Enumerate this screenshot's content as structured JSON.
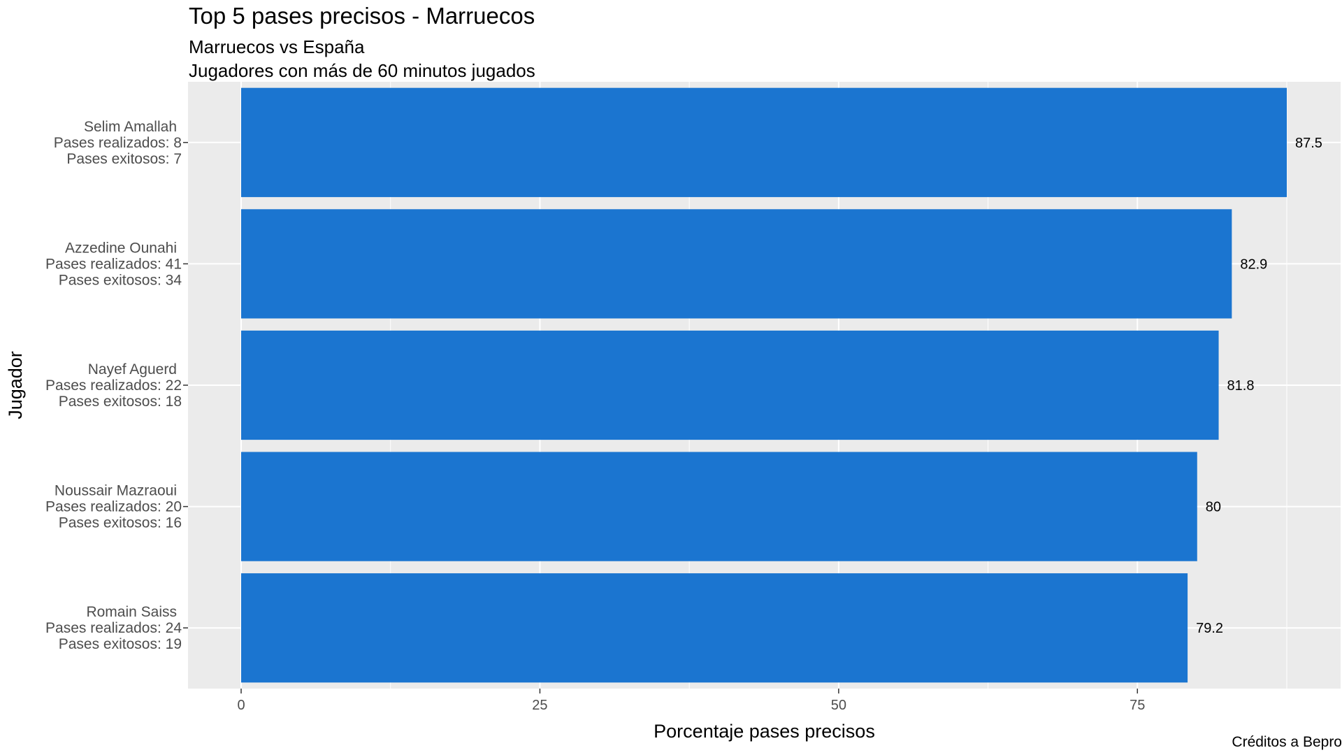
{
  "chart_data": {
    "type": "bar",
    "orientation": "horizontal",
    "title": "Top 5 pases precisos - Marruecos",
    "subtitle_lines": [
      "Marruecos vs España",
      "Jugadores con más de 60 minutos jugados"
    ],
    "caption": "Créditos a Bepro",
    "xlabel": "Porcentaje pases precisos",
    "ylabel": "Jugador",
    "xlim": [
      0,
      90
    ],
    "xticks": [
      0,
      25,
      50,
      75
    ],
    "grid": true,
    "bar_color": "#1b75d0",
    "panel_color": "#ebebeb",
    "categories": [
      [
        "Selim Amallah",
        "Pases realizados:  8",
        "Pases exitosos:  7"
      ],
      [
        "Azzedine Ounahi",
        "Pases realizados:  41",
        "Pases exitosos:  34"
      ],
      [
        "Nayef Aguerd",
        "Pases realizados:  22",
        "Pases exitosos:  18"
      ],
      [
        "Noussair Mazraoui",
        "Pases realizados:  20",
        "Pases exitosos:  16"
      ],
      [
        "Romain Saiss",
        "Pases realizados:  24",
        "Pases exitosos:  19"
      ]
    ],
    "values": [
      87.5,
      82.9,
      81.8,
      80,
      79.2
    ],
    "value_labels": [
      "87.5",
      "82.9",
      "81.8",
      "80",
      "79.2"
    ]
  }
}
